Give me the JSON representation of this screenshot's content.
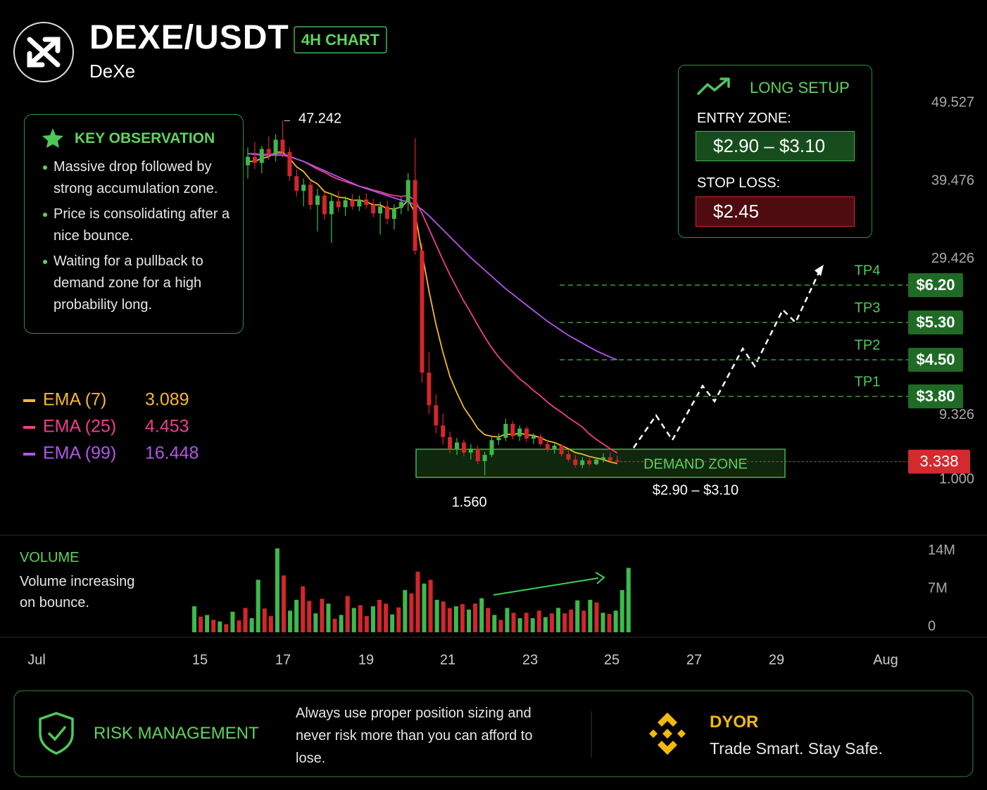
{
  "header": {
    "title": "DEXE/USDT",
    "badge": "4H CHART",
    "subtitle": "DeXe"
  },
  "observation": {
    "title": "KEY OBSERVATION",
    "items": [
      "Massive drop followed by strong accumulation zone.",
      "Price is consolidating after a nice bounce.",
      "Waiting for a pullback to demand zone for a high probability long."
    ]
  },
  "setup": {
    "title": "LONG SETUP",
    "entry_label": "ENTRY ZONE:",
    "entry": "$2.90 – $3.10",
    "stop_label": "STOP LOSS:",
    "stop": "$2.45"
  },
  "footer": {
    "risk_title": "RISK MANAGEMENT",
    "risk_text": "Always use proper position sizing and never risk more than you can afford to lose.",
    "dyor_title": "DYOR",
    "dyor_text": "Trade Smart. Stay Safe."
  },
  "chart_data": [
    {
      "type": "candlestick",
      "open": [
        41.5,
        42.6,
        41.8,
        43.6,
        42.9,
        44.8,
        43.2,
        40.1,
        38.2,
        39.0,
        36.4,
        37.6,
        35.2,
        36.9,
        36.1,
        37.0,
        36.2,
        37.1,
        36.4,
        35.3,
        36.2,
        34.6,
        36.0,
        36.8,
        39.6,
        30.5,
        14.8,
        10.6,
        8.0,
        6.5,
        5.0,
        5.8,
        4.5,
        5.0,
        3.4,
        4.2,
        6.1,
        6.4,
        8.2,
        6.6,
        7.6,
        6.3,
        6.6,
        5.6,
        4.9,
        5.4,
        4.3,
        3.6,
        2.9,
        3.5,
        3.0,
        3.6,
        3.9,
        3.5
      ],
      "high": [
        43.8,
        44.5,
        44.0,
        45.2,
        45.5,
        47.242,
        43.8,
        41.0,
        39.8,
        39.5,
        38.5,
        38.0,
        37.8,
        38.2,
        37.5,
        37.8,
        37.6,
        37.9,
        37.2,
        36.8,
        36.9,
        36.5,
        37.4,
        40.5,
        45.0,
        31.5,
        17.5,
        12.0,
        9.5,
        7.2,
        6.4,
        6.2,
        5.6,
        5.4,
        4.6,
        6.5,
        7.0,
        8.9,
        8.6,
        8.0,
        7.9,
        7.0,
        6.9,
        6.0,
        5.8,
        5.6,
        4.8,
        4.2,
        3.9,
        3.8,
        3.9,
        4.4,
        4.6,
        4.1
      ],
      "low": [
        39.8,
        41.0,
        40.5,
        42.2,
        42.0,
        42.5,
        39.5,
        37.5,
        36.2,
        35.8,
        33.0,
        34.5,
        31.5,
        35.5,
        35.0,
        35.8,
        35.6,
        35.9,
        34.8,
        32.6,
        33.9,
        33.2,
        35.2,
        35.6,
        30.0,
        13.5,
        9.5,
        7.0,
        5.5,
        4.4,
        4.2,
        4.0,
        3.6,
        3.0,
        1.56,
        3.9,
        5.5,
        6.0,
        6.2,
        6.0,
        5.9,
        5.6,
        5.3,
        4.6,
        4.4,
        4.0,
        3.3,
        2.6,
        2.5,
        2.7,
        2.9,
        3.2,
        3.4,
        3.2
      ],
      "close": [
        42.6,
        41.8,
        43.6,
        42.9,
        44.8,
        43.2,
        40.1,
        38.2,
        39.0,
        36.4,
        37.6,
        35.2,
        36.9,
        36.1,
        37.0,
        36.2,
        37.1,
        36.4,
        35.3,
        36.2,
        34.6,
        36.0,
        36.8,
        39.6,
        30.5,
        14.8,
        10.6,
        8.0,
        6.5,
        5.0,
        5.8,
        4.5,
        5.0,
        3.4,
        4.2,
        6.1,
        6.4,
        8.2,
        6.6,
        7.6,
        6.3,
        6.6,
        5.6,
        4.9,
        5.4,
        4.3,
        3.6,
        2.9,
        3.5,
        3.0,
        3.6,
        3.9,
        3.5,
        3.338
      ],
      "up_color": "#3cba4a",
      "down_color": "#d3262b",
      "ylim": [
        -2.5,
        51
      ],
      "yticks": [
        49.527,
        39.476,
        29.426,
        9.326,
        {
          "value": 1,
          "label": "1.000"
        }
      ],
      "high_label": "47.242",
      "low_label": "1.560",
      "series": [
        {
          "name": "EMA (7)",
          "color": "#f5b82e",
          "values": [
            42.0,
            42.0,
            42.4,
            42.6,
            43.2,
            43.2,
            42.4,
            41.3,
            40.7,
            39.6,
            39.1,
            38.1,
            37.8,
            37.4,
            37.3,
            37.0,
            37.0,
            36.8,
            36.4,
            36.4,
            35.9,
            35.9,
            36.1,
            37.0,
            35.4,
            30.2,
            25.3,
            21.0,
            17.4,
            14.3,
            12.2,
            10.3,
            9.0,
            7.6,
            6.8,
            6.6,
            6.5,
            6.9,
            6.8,
            7.0,
            6.8,
            6.7,
            6.4,
            6.0,
            5.8,
            5.4,
            5.0,
            4.5,
            4.3,
            4.0,
            3.8,
            3.6,
            3.3,
            3.089
          ]
        },
        {
          "name": "EMA (25)",
          "color": "#ec3f8c",
          "values": [
            43.0,
            43.0,
            42.9,
            42.9,
            43.0,
            43.0,
            42.7,
            42.3,
            42.0,
            41.5,
            41.0,
            40.6,
            40.1,
            39.7,
            39.4,
            39.1,
            38.8,
            38.6,
            38.3,
            38.1,
            37.8,
            37.6,
            37.5,
            37.6,
            37.0,
            35.3,
            33.3,
            31.3,
            29.3,
            27.4,
            25.7,
            24.0,
            22.5,
            20.9,
            19.4,
            18.0,
            16.8,
            15.8,
            14.9,
            14.0,
            13.3,
            12.5,
            11.8,
            11.0,
            10.3,
            9.7,
            9.0,
            8.4,
            7.8,
            6.9,
            6.2,
            5.6,
            5.0,
            4.453
          ]
        },
        {
          "name": "EMA (99)",
          "color": "#b156e8",
          "values": [
            43.0,
            42.9,
            42.8,
            42.8,
            42.8,
            42.8,
            42.6,
            42.3,
            42.0,
            41.6,
            41.2,
            40.8,
            40.4,
            40.0,
            39.6,
            39.2,
            38.8,
            38.5,
            38.2,
            37.9,
            37.6,
            37.3,
            37.0,
            36.8,
            36.4,
            35.8,
            35.0,
            34.1,
            33.2,
            32.3,
            31.4,
            30.5,
            29.6,
            28.8,
            28.0,
            27.2,
            26.4,
            25.6,
            24.9,
            24.2,
            23.5,
            22.8,
            22.1,
            21.4,
            20.8,
            20.2,
            19.6,
            19.1,
            18.6,
            18.1,
            17.6,
            17.2,
            16.8,
            16.448
          ]
        }
      ],
      "targets": [
        {
          "name": "TP4",
          "label": "$6.20"
        },
        {
          "name": "TP3",
          "label": "$5.30"
        },
        {
          "name": "TP2",
          "label": "$4.50"
        },
        {
          "name": "TP1",
          "label": "$3.80"
        }
      ],
      "current_price": 3.338,
      "current_price_color": "#d32a2e",
      "demand_zone": {
        "title": "DEMAND ZONE",
        "label": "$2.90 – $3.10"
      },
      "date_labels": [
        "Jul",
        "15",
        "17",
        "19",
        "21",
        "23",
        "25",
        "27",
        "29",
        "Aug"
      ]
    },
    {
      "type": "bar",
      "title": "VOLUME",
      "note": "Volume increasing on bounce.",
      "values": [
        4.8,
        2.9,
        3.2,
        2.3,
        2.0,
        1.5,
        3.8,
        2.2,
        4.5,
        2.6,
        9.7,
        4.4,
        3.0,
        15.5,
        10.5,
        4.0,
        6.0,
        8.5,
        5.8,
        3.5,
        6.2,
        5.3,
        2.5,
        3.2,
        6.7,
        4.5,
        5.0,
        3.0,
        4.8,
        6.0,
        5.3,
        3.3,
        4.6,
        7.8,
        7.2,
        11.2,
        9.0,
        9.7,
        6.0,
        5.7,
        4.5,
        4.8,
        5.2,
        4.2,
        5.3,
        6.3,
        4.5,
        3.2,
        2.3,
        4.5,
        3.6,
        2.6,
        3.6,
        2.6,
        4.0,
        2.8,
        3.5,
        4.5,
        3.5,
        4.2,
        5.9,
        4.0,
        6.0,
        5.5,
        3.6,
        3.4,
        4.0,
        7.8,
        11.9
      ],
      "colors": [
        "#3cba4a",
        "#d3262b",
        "#3cba4a",
        "#d3262b",
        "#3cba4a",
        "#d3262b",
        "#3cba4a",
        "#d3262b",
        "#d3262b",
        "#3cba4a",
        "#3cba4a",
        "#d3262b",
        "#d3262b",
        "#3cba4a",
        "#d3262b",
        "#3cba4a",
        "#3cba4a",
        "#d3262b",
        "#d3262b",
        "#3cba4a",
        "#d3262b",
        "#3cba4a",
        "#d3262b",
        "#3cba4a",
        "#d3262b",
        "#3cba4a",
        "#d3262b",
        "#d3262b",
        "#3cba4a",
        "#d3262b",
        "#d3262b",
        "#3cba4a",
        "#d3262b",
        "#3cba4a",
        "#d3262b",
        "#d3262b",
        "#3cba4a",
        "#d3262b",
        "#3cba4a",
        "#d3262b",
        "#d3262b",
        "#3cba4a",
        "#d3262b",
        "#3cba4a",
        "#d3262b",
        "#3cba4a",
        "#d3262b",
        "#3cba4a",
        "#d3262b",
        "#3cba4a",
        "#d3262b",
        "#3cba4a",
        "#d3262b",
        "#3cba4a",
        "#d3262b",
        "#3cba4a",
        "#d3262b",
        "#3cba4a",
        "#d3262b",
        "#d3262b",
        "#3cba4a",
        "#d3262b",
        "#3cba4a",
        "#d3262b",
        "#3cba4a",
        "#d3262b",
        "#3cba4a",
        "#3cba4a",
        "#3cba4a"
      ],
      "ylim": [
        0,
        16
      ],
      "yticks": [
        {
          "value": 14,
          "label": "14M"
        },
        {
          "value": 7,
          "label": "7M"
        },
        0
      ]
    }
  ]
}
